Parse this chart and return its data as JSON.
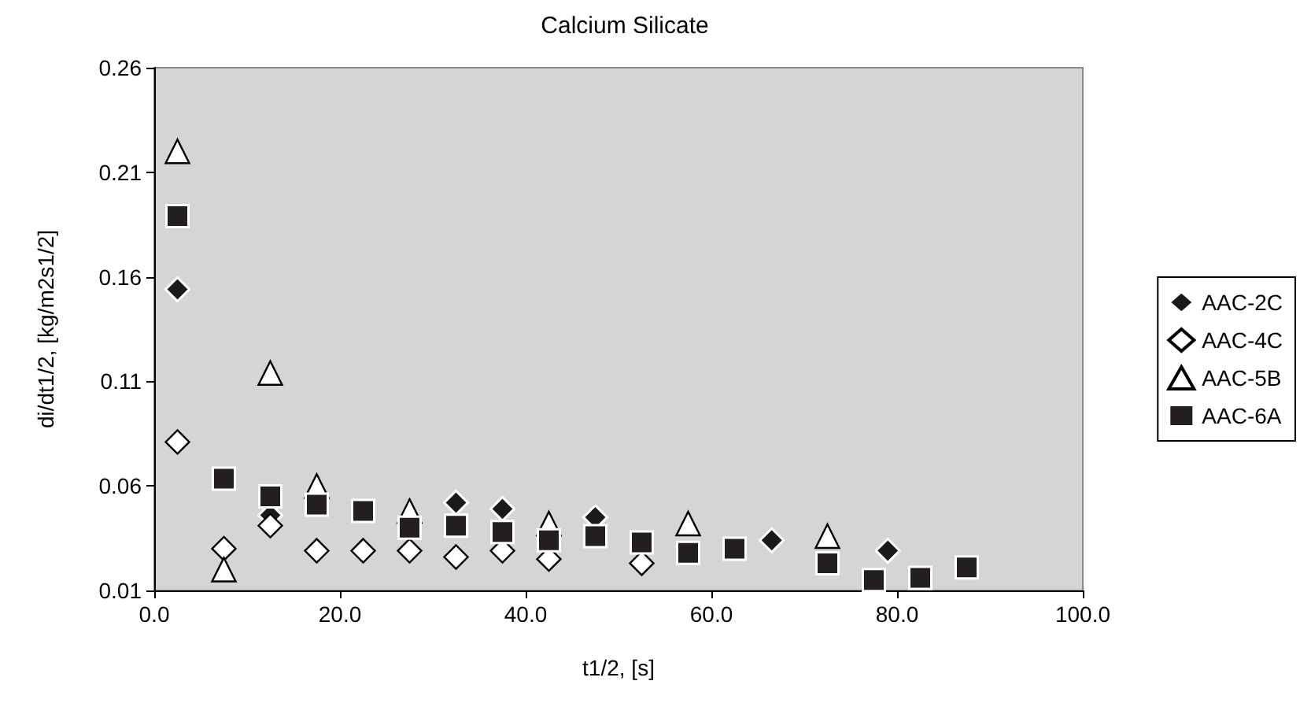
{
  "chart_data": {
    "type": "scatter",
    "title": "Calcium Silicate",
    "xlabel": "t1/2, [s]",
    "ylabel": "di/dt1/2, [kg/m2s1/2]",
    "xlim": [
      0,
      100
    ],
    "xticks": [
      {
        "value": 0,
        "label": "0.0"
      },
      {
        "value": 20,
        "label": "20.0"
      },
      {
        "value": 40,
        "label": "40.0"
      },
      {
        "value": 60,
        "label": "60.0"
      },
      {
        "value": 80,
        "label": "80.0"
      },
      {
        "value": 100,
        "label": "100.0"
      }
    ],
    "ylim": [
      0.01,
      0.26
    ],
    "yticks": [
      0.01,
      0.06,
      0.11,
      0.16,
      0.21,
      0.26
    ],
    "grid": false,
    "legend": "right",
    "series": [
      {
        "name": "AAC-2C",
        "color": "#1a1a1a",
        "marker": "diamond",
        "x": [
          2.5,
          12.5,
          32.5,
          37.5,
          47.5,
          66.5,
          79
        ],
        "values": [
          0.154,
          0.046,
          0.052,
          0.049,
          0.045,
          0.034,
          0.029
        ]
      },
      {
        "name": "AAC-4C",
        "color": "#ffffff",
        "marker": "diamond",
        "x": [
          2.5,
          7.5,
          12.5,
          17.5,
          22.5,
          27.5,
          32.5,
          37.5,
          42.5,
          52.5
        ],
        "values": [
          0.081,
          0.03,
          0.041,
          0.029,
          0.029,
          0.029,
          0.026,
          0.029,
          0.025,
          0.023
        ]
      },
      {
        "name": "AAC-5B",
        "color": "#ffffff",
        "marker": "triangle",
        "x": [
          2.5,
          7.5,
          12.5,
          17.5,
          22.5,
          27.5,
          42.5,
          57.5,
          72.5
        ],
        "values": [
          0.22,
          0.02,
          0.114,
          0.06,
          null,
          0.048,
          0.042,
          0.042,
          0.036
        ]
      },
      {
        "name": "AAC-6A",
        "color": "#231f20",
        "marker": "square",
        "x": [
          2.5,
          7.5,
          12.5,
          17.5,
          22.5,
          27.5,
          32.5,
          37.5,
          42.5,
          47.5,
          52.5,
          57.5,
          62.5,
          72.5,
          77.5,
          82.5,
          87.5
        ],
        "values": [
          0.189,
          0.0635,
          0.055,
          0.051,
          0.048,
          0.04,
          0.041,
          0.038,
          0.034,
          0.036,
          0.033,
          0.028,
          0.03,
          0.023,
          0.015,
          0.016,
          0.021
        ]
      }
    ]
  }
}
